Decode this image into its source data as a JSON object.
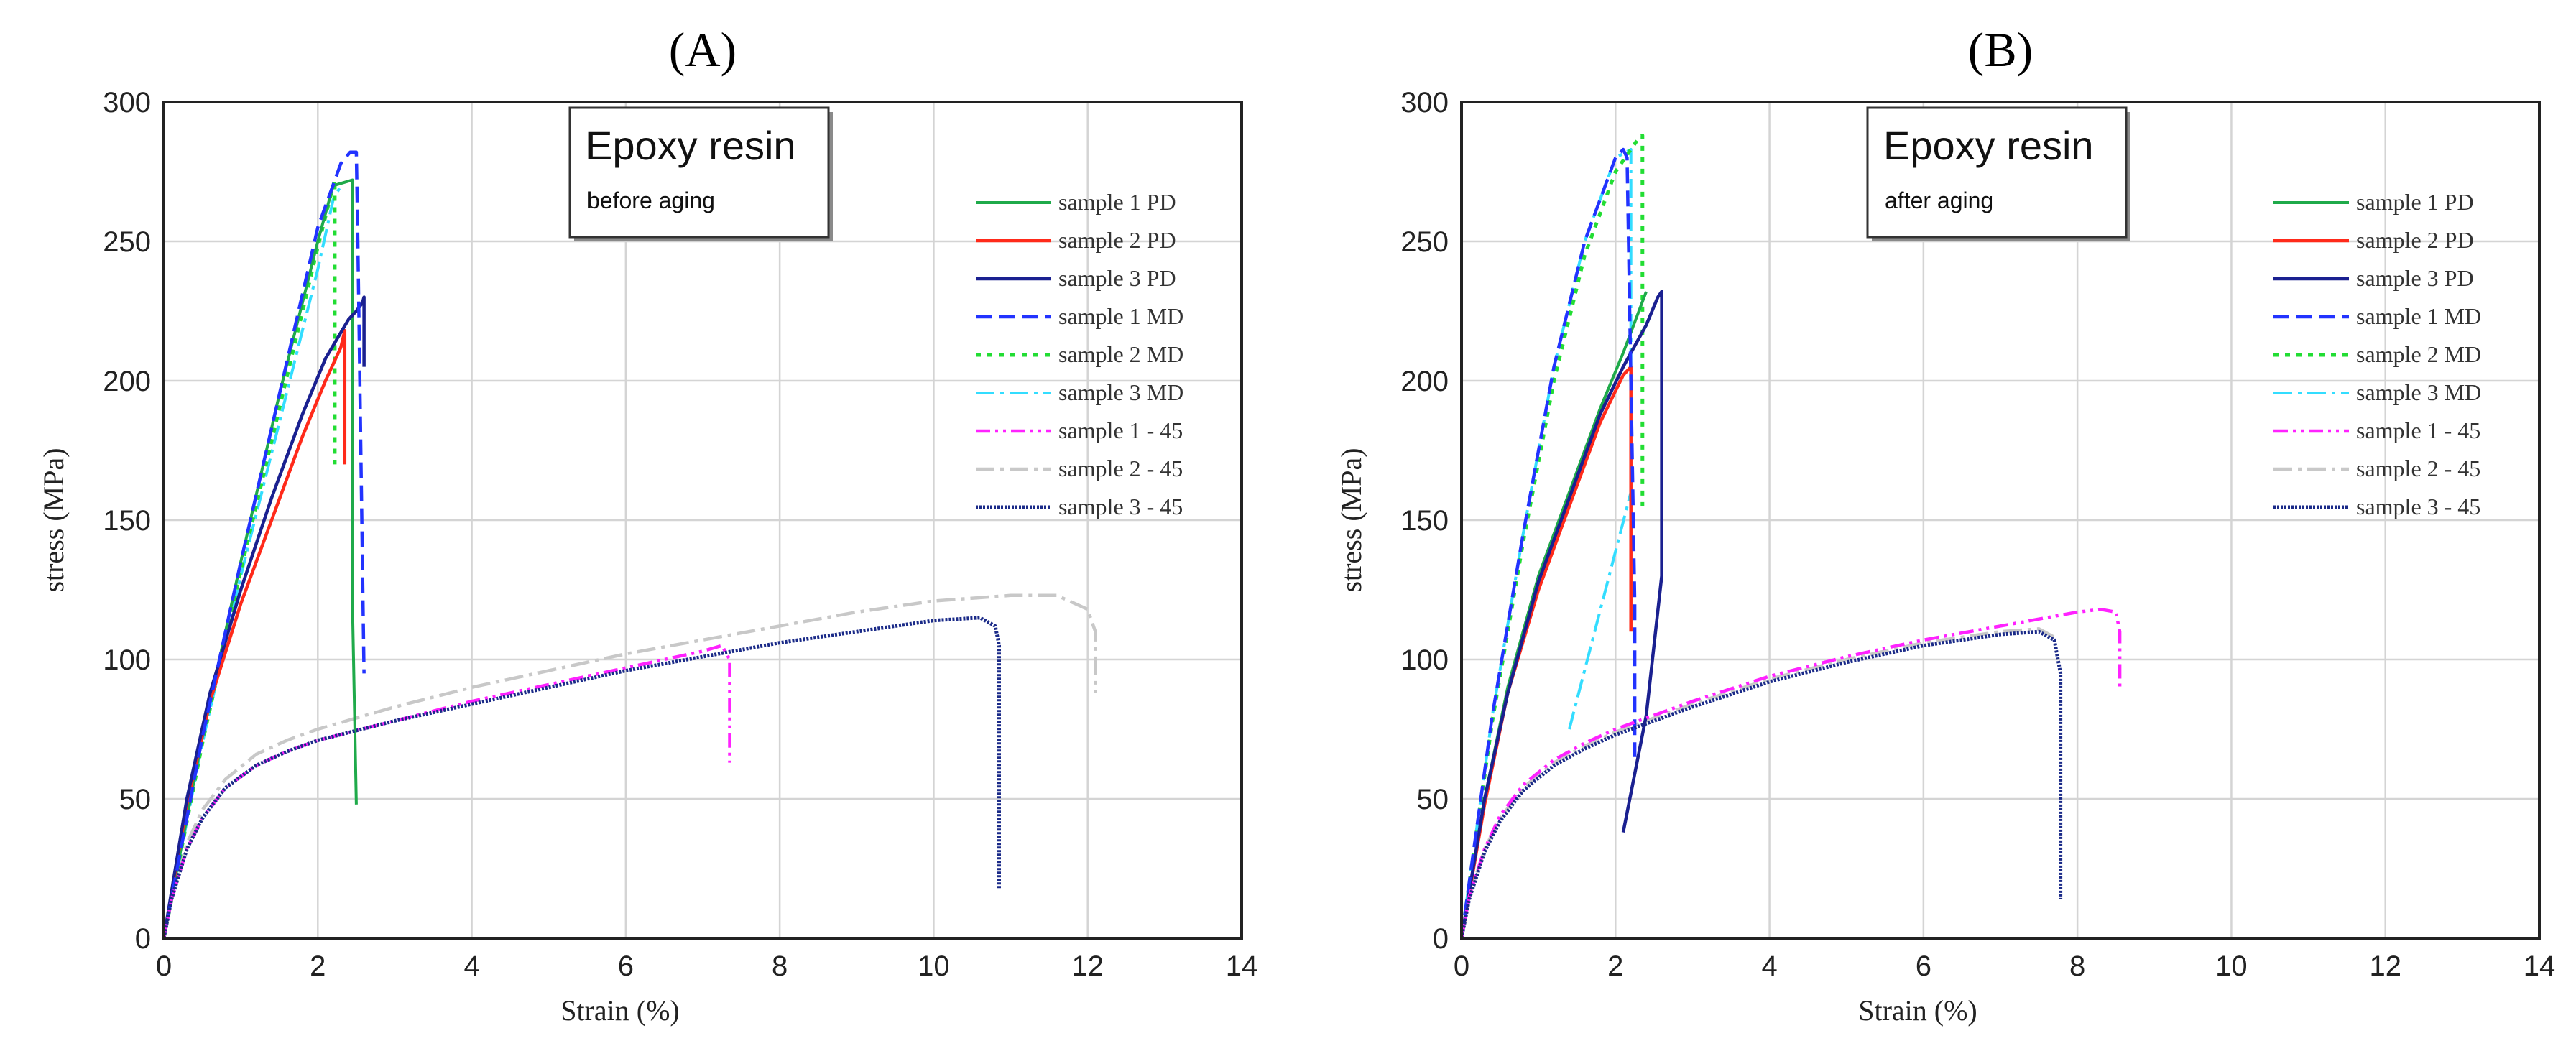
{
  "colors": {
    "sample 1 PD": "#1faa4a",
    "sample 2 PD": "#ff2a1a",
    "sample 3 PD": "#1a2090",
    "sample 1 MD": "#2233ff",
    "sample 2 MD": "#22dd33",
    "sample 3 MD": "#33ddff",
    "sample 1 - 45": "#ff22ff",
    "sample 2 - 45": "#c8c8c8",
    "sample 3 - 45": "#1a2a88"
  },
  "chart_data": [
    {
      "type": "line",
      "panel_label": "(A)",
      "title": "Epoxy resin",
      "subtitle": "before aging",
      "xlabel": "Strain (%)",
      "ylabel": "stress (MPa)",
      "xlim": [
        0,
        14
      ],
      "ylim": [
        0,
        300
      ],
      "xticks": [
        0,
        2,
        4,
        6,
        8,
        10,
        12,
        14
      ],
      "yticks": [
        0,
        50,
        100,
        150,
        200,
        250,
        300
      ],
      "grid": true,
      "legend": [
        "sample 1 PD",
        "sample 2 PD",
        "sample 3 PD",
        "sample 1 MD",
        "sample 2 MD",
        "sample 3 MD",
        "sample 1 - 45",
        "sample 2 - 45",
        "sample 3 - 45"
      ],
      "series": [
        {
          "name": "sample 2 - 45",
          "x": [
            0,
            0.1,
            0.3,
            0.5,
            0.8,
            1.2,
            1.6,
            2,
            3,
            4,
            5,
            6,
            7,
            8,
            9,
            10,
            11,
            11.6,
            12,
            12.1,
            12.1
          ],
          "y": [
            0,
            15,
            34,
            46,
            57,
            66,
            71,
            75,
            83,
            90,
            96,
            102,
            107,
            112,
            117,
            121,
            123,
            123,
            118,
            110,
            88
          ]
        },
        {
          "name": "sample 3 MD",
          "x": [
            0,
            0.5,
            1,
            1.5,
            2,
            2.2,
            2.3
          ],
          "y": [
            0,
            70,
            130,
            185,
            240,
            265,
            270
          ]
        },
        {
          "name": "sample 2 MD",
          "x": [
            0,
            0.5,
            1,
            1.5,
            2,
            2.2,
            2.22,
            2.22
          ],
          "y": [
            0,
            70,
            132,
            190,
            248,
            270,
            272,
            170
          ]
        },
        {
          "name": "sample 1 PD",
          "x": [
            0,
            0.5,
            1,
            1.5,
            2,
            2.2,
            2.45,
            2.45,
            2.5
          ],
          "y": [
            0,
            72,
            135,
            195,
            250,
            270,
            272,
            120,
            48
          ]
        },
        {
          "name": "sample 2 PD",
          "x": [
            0,
            0.3,
            0.6,
            1,
            1.4,
            1.8,
            2.1,
            2.3,
            2.35,
            2.35
          ],
          "y": [
            0,
            48,
            85,
            120,
            150,
            180,
            200,
            212,
            218,
            170
          ]
        },
        {
          "name": "sample 3 PD",
          "x": [
            0,
            0.3,
            0.6,
            1,
            1.4,
            1.8,
            2.1,
            2.4,
            2.5,
            2.58,
            2.6,
            2.6
          ],
          "y": [
            0,
            50,
            88,
            125,
            158,
            188,
            208,
            222,
            225,
            228,
            230,
            205
          ]
        },
        {
          "name": "sample 1 MD",
          "x": [
            0,
            0.5,
            1,
            1.5,
            2,
            2.3,
            2.42,
            2.5,
            2.52,
            2.6
          ],
          "y": [
            0,
            72,
            135,
            195,
            255,
            278,
            282,
            282,
            250,
            95
          ]
        },
        {
          "name": "sample 1 - 45",
          "x": [
            0,
            0.1,
            0.3,
            0.5,
            0.8,
            1.2,
            1.6,
            2,
            3,
            4,
            5,
            6,
            7,
            7.25,
            7.35,
            7.35
          ],
          "y": [
            0,
            14,
            32,
            43,
            54,
            62,
            67,
            71,
            78,
            85,
            91,
            97,
            103,
            105,
            100,
            63
          ]
        },
        {
          "name": "sample 3 - 45",
          "x": [
            0,
            0.1,
            0.3,
            0.5,
            0.8,
            1.2,
            1.6,
            2,
            3,
            4,
            5,
            6,
            7,
            8,
            9,
            10,
            10.6,
            10.8,
            10.85,
            10.85
          ],
          "y": [
            0,
            14,
            32,
            43,
            54,
            62,
            67,
            71,
            78,
            84,
            90,
            96,
            101,
            106,
            110,
            114,
            115,
            112,
            105,
            18
          ]
        }
      ]
    },
    {
      "type": "line",
      "panel_label": "(B)",
      "title": "Epoxy resin",
      "subtitle": "after aging",
      "xlabel": "Strain (%)",
      "ylabel": "stress (MPa)",
      "xlim": [
        0,
        14
      ],
      "ylim": [
        0,
        300
      ],
      "xticks": [
        0,
        2,
        4,
        6,
        8,
        10,
        12,
        14
      ],
      "yticks": [
        0,
        50,
        100,
        150,
        200,
        250,
        300
      ],
      "grid": true,
      "legend": [
        "sample 1 PD",
        "sample 2 PD",
        "sample 3 PD",
        "sample 1 MD",
        "sample 2 MD",
        "sample 3 MD",
        "sample 1 - 45",
        "sample 2 - 45",
        "sample 3 - 45"
      ],
      "series": [
        {
          "name": "sample 3 MD",
          "x": [
            0,
            0.4,
            0.8,
            1.2,
            1.6,
            2,
            2.2,
            2.2,
            1.4
          ],
          "y": [
            0,
            80,
            145,
            205,
            250,
            280,
            283,
            160,
            75
          ]
        },
        {
          "name": "sample 2 - 45",
          "x": [
            0,
            0.1,
            0.3,
            0.5,
            0.8,
            1.2,
            1.6,
            2,
            3,
            4,
            5,
            6,
            7,
            7.5,
            7.7
          ],
          "y": [
            0,
            15,
            32,
            43,
            54,
            63,
            69,
            74,
            84,
            93,
            100,
            106,
            110,
            111,
            108
          ]
        },
        {
          "name": "sample 2 MD",
          "x": [
            0,
            0.4,
            0.8,
            1.2,
            1.6,
            2,
            2.2,
            2.3,
            2.35,
            2.35
          ],
          "y": [
            0,
            78,
            142,
            200,
            245,
            275,
            283,
            287,
            288,
            155
          ]
        },
        {
          "name": "sample 1 PD",
          "x": [
            0,
            0.3,
            0.6,
            1,
            1.4,
            1.8,
            2.1,
            2.4
          ],
          "y": [
            0,
            50,
            90,
            130,
            160,
            190,
            210,
            232
          ]
        },
        {
          "name": "sample 2 PD",
          "x": [
            0,
            0.3,
            0.6,
            1,
            1.4,
            1.8,
            2.1,
            2.2,
            2.2
          ],
          "y": [
            0,
            48,
            88,
            125,
            155,
            185,
            202,
            205,
            110
          ]
        },
        {
          "name": "sample 3 PD",
          "x": [
            0,
            0.3,
            0.6,
            1,
            1.4,
            1.8,
            2.1,
            2.4,
            2.55,
            2.6,
            2.6,
            2.4,
            2.1
          ],
          "y": [
            0,
            50,
            88,
            128,
            158,
            188,
            205,
            220,
            230,
            232,
            130,
            80,
            38
          ]
        },
        {
          "name": "sample 1 MD",
          "x": [
            0,
            0.4,
            0.8,
            1.2,
            1.6,
            2,
            2.1,
            2.15,
            2.2,
            2.25,
            2.25
          ],
          "y": [
            0,
            80,
            145,
            205,
            250,
            280,
            283,
            280,
            200,
            120,
            65
          ]
        },
        {
          "name": "sample 1 - 45",
          "x": [
            0,
            0.1,
            0.3,
            0.5,
            0.8,
            1.2,
            1.6,
            2,
            3,
            4,
            5,
            6,
            7,
            8,
            8.3,
            8.5,
            8.55,
            8.55
          ],
          "y": [
            0,
            15,
            32,
            44,
            55,
            64,
            70,
            75,
            85,
            94,
            101,
            107,
            112,
            117,
            118,
            117,
            110,
            90
          ]
        },
        {
          "name": "sample 3 - 45",
          "x": [
            0,
            0.1,
            0.3,
            0.5,
            0.8,
            1.2,
            1.6,
            2,
            3,
            4,
            5,
            6,
            7,
            7.5,
            7.7,
            7.78,
            7.78
          ],
          "y": [
            0,
            14,
            31,
            42,
            53,
            62,
            68,
            73,
            83,
            92,
            99,
            105,
            109,
            110,
            107,
            95,
            14
          ]
        }
      ]
    }
  ]
}
